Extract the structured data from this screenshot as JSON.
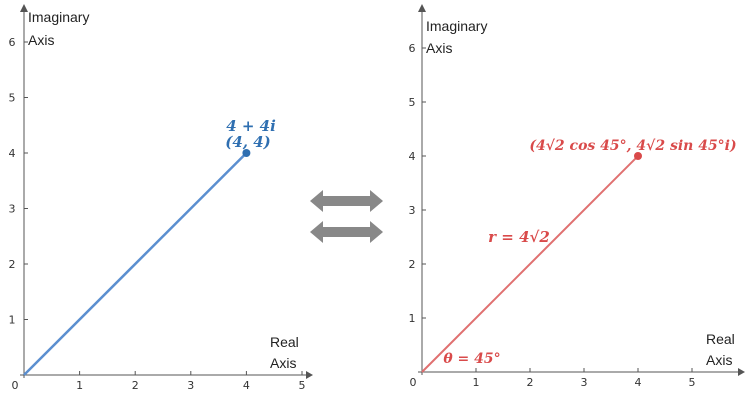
{
  "left_plot": {
    "y_axis_title_line1": "Imaginary",
    "y_axis_title_line2": "Axis",
    "x_axis_title_line1": "Real",
    "x_axis_title_line2": "Axis",
    "origin_label": "0",
    "x_ticks": [
      "1",
      "2",
      "3",
      "4",
      "5"
    ],
    "y_ticks": [
      "1",
      "2",
      "3",
      "4",
      "5",
      "6"
    ],
    "point": {
      "x": 4,
      "y": 4
    },
    "point_label_line1": "4 + 4i",
    "point_label_line2": "(4, 4)",
    "line_color": "#5b8fd0",
    "point_color": "#2f6fb1"
  },
  "right_plot": {
    "y_axis_title_line1": "Imaginary",
    "y_axis_title_line2": "Axis",
    "x_axis_title_line1": "Real",
    "x_axis_title_line2": "Axis",
    "origin_label": "0",
    "x_ticks": [
      "1",
      "2",
      "3",
      "4",
      "5"
    ],
    "y_ticks": [
      "1",
      "2",
      "3",
      "4",
      "5",
      "6"
    ],
    "point": {
      "x": 4,
      "y": 4
    },
    "point_label": "(4√2 cos 45°, 4√2 sin 45°i)",
    "radius_label": "r = 4√2",
    "angle_label": "θ = 45°",
    "line_color": "#e07070",
    "point_color": "#d94a4a"
  },
  "arrows": {
    "color": "#888888",
    "icon": "double-arrow-icon"
  }
}
